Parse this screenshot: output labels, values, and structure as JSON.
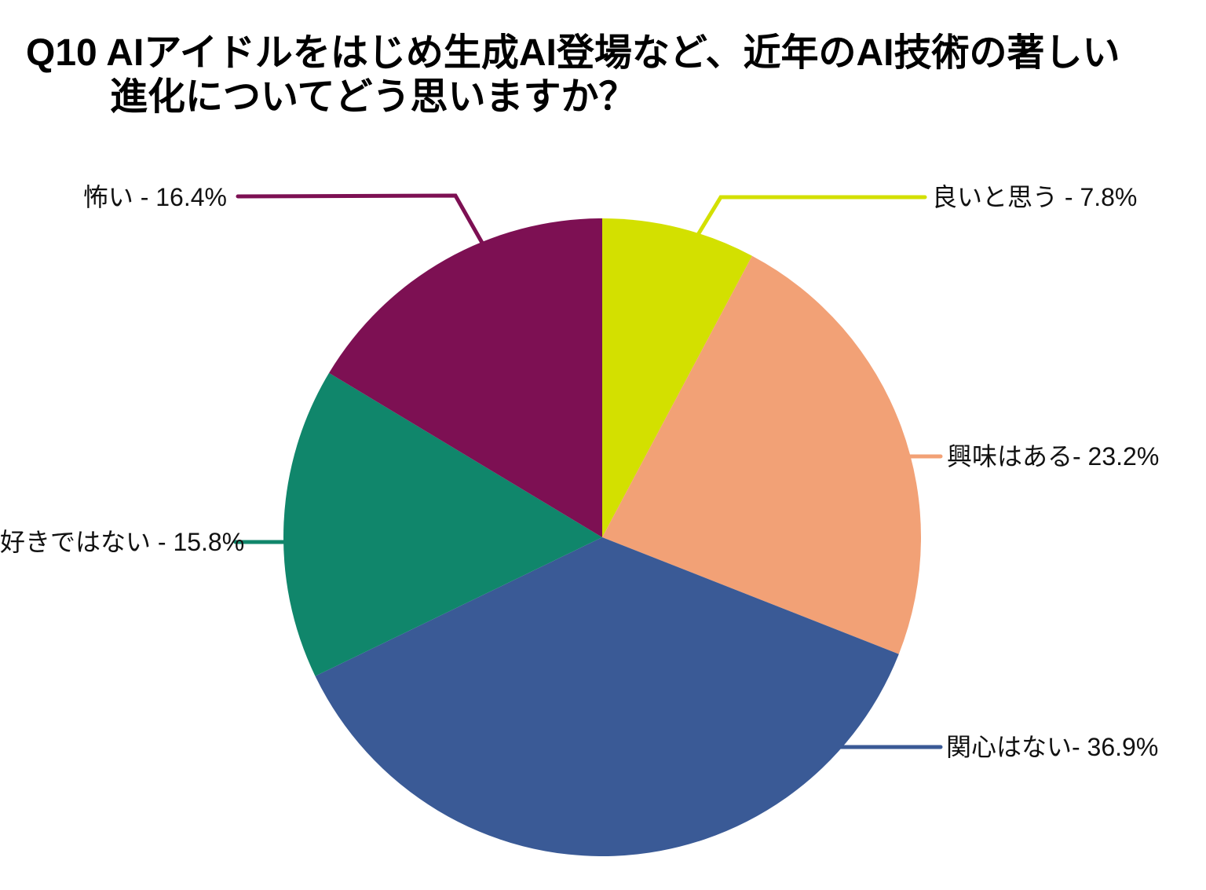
{
  "title": {
    "line1": "Q10 AIアイドルをはじめ生成AI登場など、近年のAI技術の著しい",
    "line2": "進化についてどう思いますか？"
  },
  "chart_data": {
    "type": "pie",
    "title": "Q10 AIアイドルをはじめ生成AI登場など、近年のAI技術の著しい進化についてどう思いますか？",
    "start_angle": "12-oclock-clockwise",
    "legend_position": "outside-callout-labels",
    "slices": [
      {
        "name": "良いと思う",
        "value": 7.8,
        "color": "#D3E000",
        "label": "良いと思う - 7.8%"
      },
      {
        "name": "興味はある",
        "value": 23.2,
        "color": "#F2A176",
        "label": "興味はある- 23.2%"
      },
      {
        "name": "関心はない",
        "value": 36.9,
        "color": "#3A5A96",
        "label": "関心はない- 36.9%"
      },
      {
        "name": "好きではない",
        "value": 15.8,
        "color": "#10866B",
        "label": "好きではない - 15.8%"
      },
      {
        "name": "怖い",
        "value": 16.4,
        "color": "#7D1053",
        "label": "怖い - 16.4%"
      }
    ]
  }
}
